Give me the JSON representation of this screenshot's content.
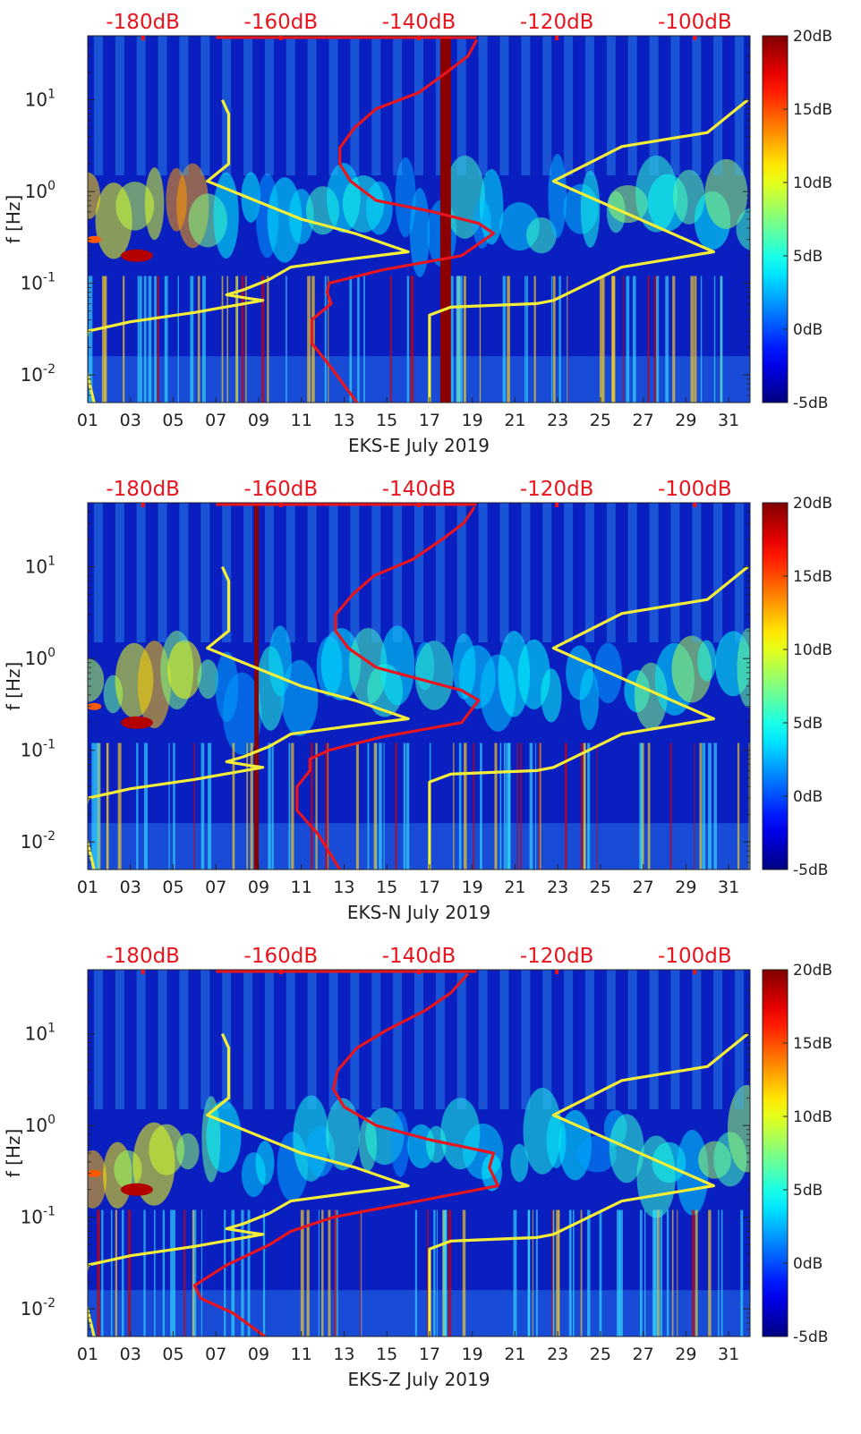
{
  "chart_data": [
    {
      "type": "heatmap",
      "title": "",
      "xlabel": "EKS-E July 2019",
      "ylabel": "f [Hz]",
      "x_ticks": [
        "01",
        "03",
        "05",
        "07",
        "09",
        "11",
        "13",
        "15",
        "17",
        "19",
        "21",
        "23",
        "25",
        "27",
        "29",
        "31"
      ],
      "x_range_days": [
        1,
        32
      ],
      "y_scale": "log",
      "y_range_hz": [
        0.005,
        50
      ],
      "y_ticks": [
        "10^-2",
        "10^-1",
        "10^0",
        "10^1"
      ],
      "top_axis_ticks": [
        "-180dB",
        "-160dB",
        "-140dB",
        "-120dB",
        "-100dB"
      ],
      "top_axis_range_db": [
        -188,
        -92
      ],
      "colorbar_ticks": [
        "20dB",
        "15dB",
        "10dB",
        "5dB",
        "0dB",
        "-5dB"
      ],
      "colorbar_range_db": [
        -5,
        20
      ],
      "colors": {
        "curve_red": "#e8141e",
        "curve_yellow": "#f5ee38",
        "top_axis_text": "#e8141e"
      },
      "highlight_band_days": [
        17.5,
        18.0
      ],
      "yellow_curve": [
        [
          7.3,
          10
        ],
        [
          7.6,
          7
        ],
        [
          7.6,
          2
        ],
        [
          6.6,
          1.3
        ],
        [
          11,
          0.5
        ],
        [
          13.5,
          0.35
        ],
        [
          16,
          0.22
        ],
        [
          13,
          0.18
        ],
        [
          10.5,
          0.15
        ],
        [
          9.5,
          0.11
        ],
        [
          8.3,
          0.085
        ],
        [
          7.5,
          0.075
        ],
        [
          8.6,
          0.068
        ],
        [
          9.2,
          0.065
        ],
        [
          6,
          0.048
        ],
        [
          3,
          0.038
        ],
        [
          1,
          0.03
        ],
        [
          0.8,
          0.015
        ],
        [
          1.3,
          0.005
        ]
      ],
      "yellow_curve_right": [
        [
          17,
          0.005
        ],
        [
          17,
          0.045
        ],
        [
          18,
          0.055
        ],
        [
          22,
          0.06
        ],
        [
          22.8,
          0.065
        ],
        [
          26,
          0.15
        ],
        [
          30.3,
          0.22
        ],
        [
          22.8,
          1.3
        ],
        [
          26,
          3.1
        ],
        [
          30,
          4.4
        ],
        [
          31.9,
          10
        ]
      ],
      "red_curve": [
        [
          13.6,
          0.005
        ],
        [
          12.4,
          0.012
        ],
        [
          11.5,
          0.022
        ],
        [
          11.5,
          0.04
        ],
        [
          12.4,
          0.06
        ],
        [
          12.2,
          0.08
        ],
        [
          12.3,
          0.1
        ],
        [
          14.8,
          0.14
        ],
        [
          18.5,
          0.2
        ],
        [
          20,
          0.35
        ],
        [
          19.3,
          0.45
        ],
        [
          17.2,
          0.6
        ],
        [
          14.5,
          0.8
        ],
        [
          13.3,
          1.3
        ],
        [
          12.8,
          2
        ],
        [
          12.8,
          3
        ],
        [
          13.5,
          5
        ],
        [
          14.5,
          8
        ],
        [
          16.5,
          12
        ],
        [
          17.8,
          20
        ],
        [
          18.8,
          30
        ],
        [
          19.2,
          45
        ]
      ]
    },
    {
      "type": "heatmap",
      "title": "",
      "xlabel": "EKS-N July 2019",
      "ylabel": "f [Hz]",
      "x_ticks": [
        "01",
        "03",
        "05",
        "07",
        "09",
        "11",
        "13",
        "15",
        "17",
        "19",
        "21",
        "23",
        "25",
        "27",
        "29",
        "31"
      ],
      "x_range_days": [
        1,
        32
      ],
      "y_scale": "log",
      "y_range_hz": [
        0.005,
        50
      ],
      "y_ticks": [
        "10^-2",
        "10^-1",
        "10^0",
        "10^1"
      ],
      "top_axis_ticks": [
        "-180dB",
        "-160dB",
        "-140dB",
        "-120dB",
        "-100dB"
      ],
      "top_axis_range_db": [
        -188,
        -92
      ],
      "colorbar_ticks": [
        "20dB",
        "15dB",
        "10dB",
        "5dB",
        "0dB",
        "-5dB"
      ],
      "colorbar_range_db": [
        -5,
        20
      ],
      "colors": {
        "curve_red": "#e8141e",
        "curve_yellow": "#f5ee38",
        "top_axis_text": "#e8141e"
      },
      "highlight_band_days": [
        8.8,
        9.0
      ],
      "yellow_curve": [
        [
          7.3,
          10
        ],
        [
          7.6,
          7
        ],
        [
          7.6,
          2
        ],
        [
          6.6,
          1.3
        ],
        [
          11,
          0.5
        ],
        [
          13.5,
          0.35
        ],
        [
          16,
          0.22
        ],
        [
          13,
          0.18
        ],
        [
          10.5,
          0.15
        ],
        [
          9.5,
          0.11
        ],
        [
          8.3,
          0.085
        ],
        [
          7.5,
          0.075
        ],
        [
          8.6,
          0.068
        ],
        [
          9.2,
          0.065
        ],
        [
          6,
          0.048
        ],
        [
          3,
          0.038
        ],
        [
          1,
          0.03
        ],
        [
          0.8,
          0.015
        ],
        [
          1.3,
          0.005
        ]
      ],
      "yellow_curve_right": [
        [
          17,
          0.005
        ],
        [
          17,
          0.045
        ],
        [
          18,
          0.055
        ],
        [
          22,
          0.06
        ],
        [
          22.8,
          0.065
        ],
        [
          26,
          0.15
        ],
        [
          30.3,
          0.22
        ],
        [
          22.8,
          1.3
        ],
        [
          26,
          3.1
        ],
        [
          30,
          4.4
        ],
        [
          31.9,
          10
        ]
      ],
      "red_curve": [
        [
          12.8,
          0.005
        ],
        [
          11.8,
          0.012
        ],
        [
          10.8,
          0.022
        ],
        [
          10.8,
          0.04
        ],
        [
          11.4,
          0.06
        ],
        [
          11.4,
          0.08
        ],
        [
          12.3,
          0.1
        ],
        [
          14.8,
          0.14
        ],
        [
          18.5,
          0.2
        ],
        [
          19.3,
          0.35
        ],
        [
          18.5,
          0.45
        ],
        [
          16.5,
          0.6
        ],
        [
          14.5,
          0.8
        ],
        [
          13.2,
          1.3
        ],
        [
          12.6,
          2
        ],
        [
          12.6,
          3
        ],
        [
          13.4,
          5
        ],
        [
          14.4,
          8
        ],
        [
          16.2,
          12
        ],
        [
          17.6,
          20
        ],
        [
          18.6,
          30
        ],
        [
          19.1,
          45
        ]
      ]
    },
    {
      "type": "heatmap",
      "title": "",
      "xlabel": "EKS-Z July 2019",
      "ylabel": "f [Hz]",
      "x_ticks": [
        "01",
        "03",
        "05",
        "07",
        "09",
        "11",
        "13",
        "15",
        "17",
        "19",
        "21",
        "23",
        "25",
        "27",
        "29",
        "31"
      ],
      "x_range_days": [
        1,
        32
      ],
      "y_scale": "log",
      "y_range_hz": [
        0.005,
        50
      ],
      "y_ticks": [
        "10^-2",
        "10^-1",
        "10^0",
        "10^1"
      ],
      "top_axis_ticks": [
        "-180dB",
        "-160dB",
        "-140dB",
        "-120dB",
        "-100dB"
      ],
      "top_axis_range_db": [
        -188,
        -92
      ],
      "colorbar_ticks": [
        "20dB",
        "15dB",
        "10dB",
        "5dB",
        "0dB",
        "-5dB"
      ],
      "colorbar_range_db": [
        -5,
        20
      ],
      "colors": {
        "curve_red": "#e8141e",
        "curve_yellow": "#f5ee38",
        "top_axis_text": "#e8141e"
      },
      "highlight_band_days": null,
      "yellow_curve": [
        [
          7.3,
          10
        ],
        [
          7.6,
          7
        ],
        [
          7.6,
          2
        ],
        [
          6.6,
          1.3
        ],
        [
          11,
          0.5
        ],
        [
          13.5,
          0.35
        ],
        [
          16,
          0.22
        ],
        [
          13,
          0.18
        ],
        [
          10.5,
          0.15
        ],
        [
          9.5,
          0.11
        ],
        [
          8.3,
          0.085
        ],
        [
          7.5,
          0.075
        ],
        [
          8.6,
          0.068
        ],
        [
          9.2,
          0.065
        ],
        [
          6,
          0.048
        ],
        [
          3,
          0.038
        ],
        [
          1,
          0.03
        ],
        [
          0.8,
          0.015
        ],
        [
          1.3,
          0.005
        ]
      ],
      "yellow_curve_right": [
        [
          17,
          0.005
        ],
        [
          17,
          0.045
        ],
        [
          18,
          0.055
        ],
        [
          22,
          0.06
        ],
        [
          22.8,
          0.065
        ],
        [
          26,
          0.15
        ],
        [
          30.3,
          0.22
        ],
        [
          22.8,
          1.3
        ],
        [
          26,
          3.1
        ],
        [
          30,
          4.4
        ],
        [
          31.9,
          10
        ]
      ],
      "red_curve": [
        [
          9.3,
          0.005
        ],
        [
          7.8,
          0.009
        ],
        [
          6.3,
          0.013
        ],
        [
          6,
          0.018
        ],
        [
          7.5,
          0.03
        ],
        [
          9.5,
          0.05
        ],
        [
          10.5,
          0.07
        ],
        [
          12.5,
          0.1
        ],
        [
          16.5,
          0.15
        ],
        [
          20.2,
          0.22
        ],
        [
          19.8,
          0.35
        ],
        [
          20,
          0.5
        ],
        [
          17,
          0.7
        ],
        [
          14.5,
          1
        ],
        [
          13,
          1.6
        ],
        [
          12.5,
          2.5
        ],
        [
          12.7,
          4
        ],
        [
          13.6,
          7
        ],
        [
          15,
          11
        ],
        [
          16.8,
          18
        ],
        [
          18,
          28
        ],
        [
          18.8,
          45
        ]
      ]
    }
  ]
}
